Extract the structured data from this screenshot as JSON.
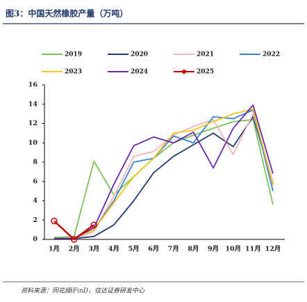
{
  "chart_data": {
    "type": "line",
    "title": "图3：中国天然橡胶产量（万吨）",
    "source": "资料来源：同花顺iFinD，信达证券研发中心",
    "categories": [
      "1月",
      "2月",
      "3月",
      "4月",
      "5月",
      "6月",
      "7月",
      "8月",
      "9月",
      "10月",
      "11月",
      "12月"
    ],
    "ylim": [
      0,
      16
    ],
    "yticks": [
      0,
      2,
      4,
      6,
      8,
      10,
      12,
      14,
      16
    ],
    "series": [
      {
        "name": "2019",
        "color": "#7cc35a",
        "values": [
          0.2,
          0.3,
          8.1,
          4.6,
          6.5,
          8.4,
          10.0,
          10.8,
          11.5,
          12.2,
          12.4,
          3.6
        ]
      },
      {
        "name": "2020",
        "color": "#1f3a6b",
        "values": [
          0.1,
          0.1,
          0.3,
          1.5,
          4.0,
          6.9,
          8.6,
          9.8,
          11.0,
          9.6,
          12.7,
          5.8
        ]
      },
      {
        "name": "2021",
        "color": "#f4b6b6",
        "values": [
          0.1,
          0.1,
          0.8,
          4.5,
          8.6,
          9.1,
          10.8,
          11.7,
          12.4,
          8.8,
          13.0,
          5.9
        ]
      },
      {
        "name": "2022",
        "color": "#3a7fe0",
        "values": [
          0.1,
          0.1,
          1.0,
          4.0,
          8.0,
          8.4,
          10.7,
          10.0,
          12.7,
          12.5,
          13.4,
          5.0
        ]
      },
      {
        "name": "2023",
        "color": "#f5c518",
        "values": [
          0.1,
          0.1,
          1.0,
          3.8,
          6.5,
          8.4,
          11.0,
          11.3,
          12.2,
          13.0,
          13.5,
          5.6
        ]
      },
      {
        "name": "2024",
        "color": "#6a2aa8",
        "values": [
          0.1,
          0.1,
          1.2,
          5.7,
          9.7,
          10.6,
          10.0,
          11.1,
          7.4,
          11.5,
          13.9,
          6.8
        ]
      },
      {
        "name": "2025",
        "color": "#c00000",
        "marker": true,
        "values": [
          1.9,
          0,
          1.5,
          null,
          null,
          null,
          null,
          null,
          null,
          null,
          null,
          null
        ]
      }
    ]
  }
}
